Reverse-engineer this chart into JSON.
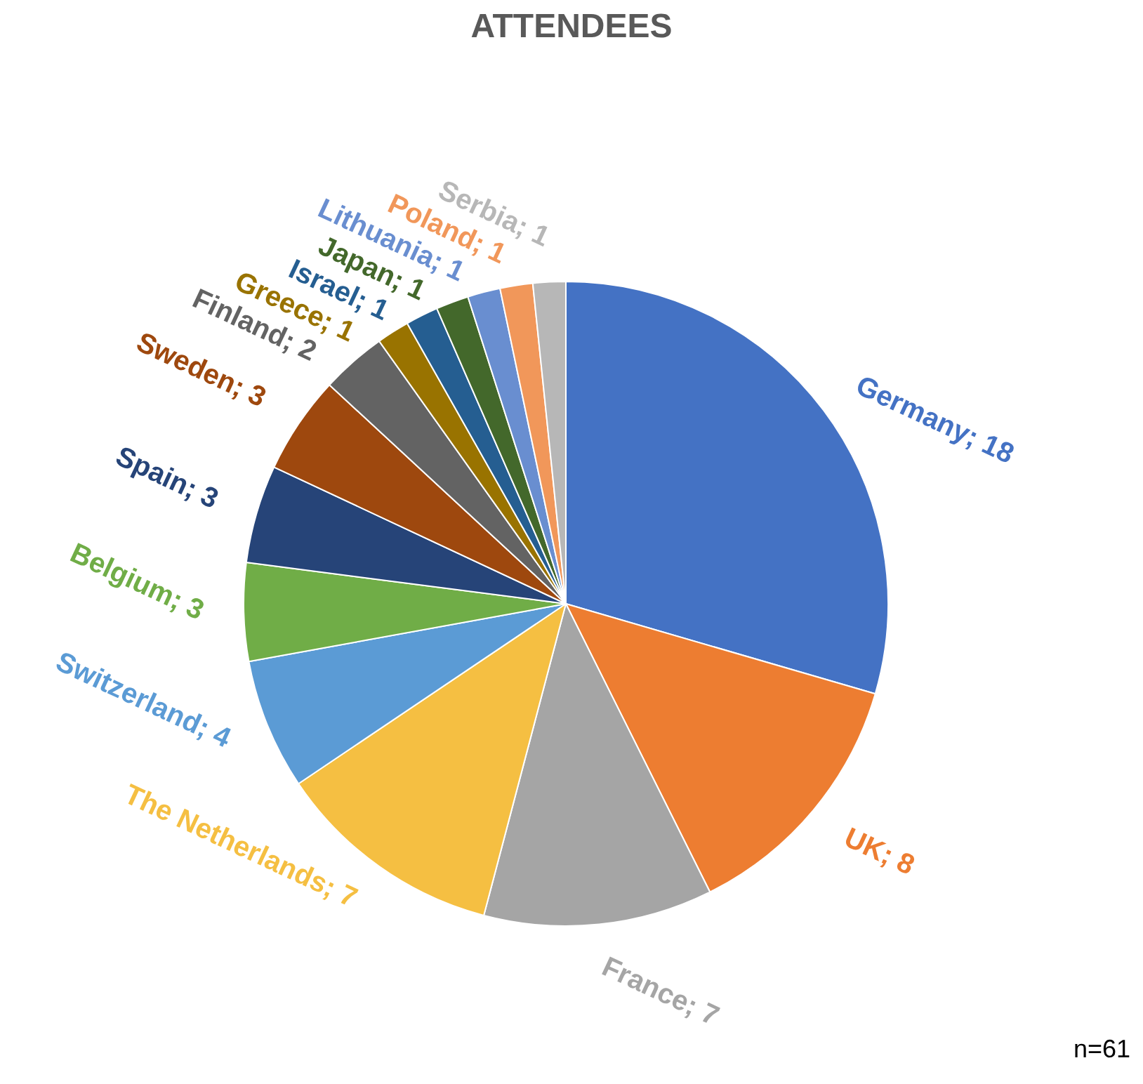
{
  "chart_data": {
    "type": "pie",
    "title": "ATTENDEES",
    "categories": [
      "Germany",
      "UK",
      "France",
      "The Netherlands",
      "Switzerland",
      "Belgium",
      "Spain",
      "Sweden",
      "Finland",
      "Greece",
      "Israel",
      "Japan",
      "Lithuania",
      "Poland",
      "Serbia"
    ],
    "values": [
      18,
      8,
      7,
      7,
      4,
      3,
      3,
      3,
      2,
      1,
      1,
      1,
      1,
      1,
      1
    ],
    "colors": [
      "#4472c4",
      "#ed7d31",
      "#a5a5a5",
      "#f5bf42",
      "#5b9bd5",
      "#70ad47",
      "#264478",
      "#9e480e",
      "#636363",
      "#997300",
      "#255e91",
      "#43682b",
      "#698ed0",
      "#f1975a",
      "#b7b7b7"
    ],
    "value_labels": [
      "; 18",
      "; 8",
      "; 7",
      "; 7",
      "; 4",
      "; 3",
      "; 3",
      "; 3",
      "; 2",
      "; 1",
      "; 1",
      "; 1",
      "; 1",
      "; 1",
      "; 1"
    ],
    "legend": false,
    "annotations": [
      "n=61"
    ]
  }
}
